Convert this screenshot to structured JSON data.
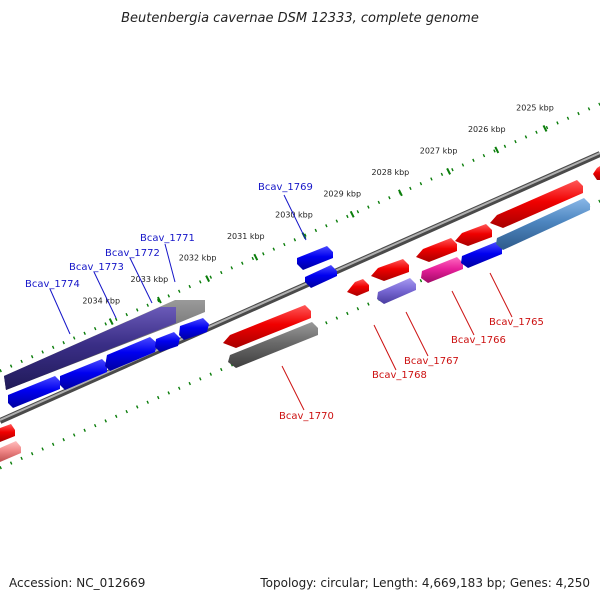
{
  "title": "Beutenbergia cavernae DSM 12333, complete genome",
  "accession_text": "Accession: NC_012669",
  "topology_text": "Topology: circular; Length: 4,669,183 bp; Genes: 4,250",
  "tick_labels": [
    "2025 kbp",
    "2026 kbp",
    "2027 kbp",
    "2028 kbp",
    "2029 kbp",
    "2030 kbp",
    "2031 kbp",
    "2032 kbp",
    "2033 kbp",
    "2034 kbp"
  ],
  "gene_labels": {
    "forward": [
      "Bcav_1769",
      "Bcav_1771",
      "Bcav_1772",
      "Bcav_1773",
      "Bcav_1774"
    ],
    "reverse": [
      "Bcav_1765",
      "Bcav_1766",
      "Bcav_1767",
      "Bcav_1768",
      "Bcav_1770"
    ]
  },
  "colors": {
    "forward_label": "#1515c8",
    "reverse_label": "#cc1010",
    "backbone": "#808080",
    "tick": "#0a7d0a"
  }
}
